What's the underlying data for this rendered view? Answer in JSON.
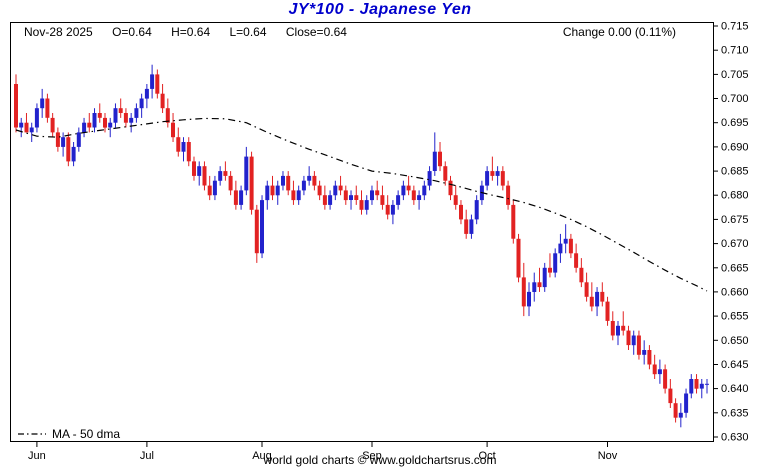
{
  "header": {
    "title": "JY*100  -  Japanese Yen",
    "date": "Nov-28 2025",
    "open": "O=0.64",
    "high": "H=0.64",
    "low": "L=0.64",
    "close": "Close=0.64",
    "change": "Change 0.00 (0.11%)"
  },
  "footer": {
    "credit": "world gold charts © www.goldchartsrus.com"
  },
  "chart_data": {
    "type": "candlestick",
    "title": "JY*100 - Japanese Yen",
    "xlabel": "",
    "ylabel": "",
    "ylim": [
      0.63,
      0.715
    ],
    "grid": false,
    "legend_position": "bottom-left",
    "y_ticks": [
      0.715,
      0.71,
      0.705,
      0.7,
      0.695,
      0.69,
      0.685,
      0.68,
      0.675,
      0.67,
      0.665,
      0.66,
      0.655,
      0.65,
      0.645,
      0.64,
      0.635,
      0.63
    ],
    "x_ticks": [
      {
        "label": "Jun",
        "index": 4
      },
      {
        "label": "Jul",
        "index": 25
      },
      {
        "label": "Aug",
        "index": 47
      },
      {
        "label": "Sep",
        "index": 68
      },
      {
        "label": "Oct",
        "index": 90
      },
      {
        "label": "Nov",
        "index": 113
      }
    ],
    "colors": {
      "up": "#2222cc",
      "down": "#e22222",
      "ma": "#000000",
      "title": "#0000cc"
    },
    "candles": [
      [
        0.703,
        0.705,
        0.693,
        0.694
      ],
      [
        0.694,
        0.696,
        0.692,
        0.695
      ],
      [
        0.695,
        0.697,
        0.693,
        0.693
      ],
      [
        0.693,
        0.695,
        0.691,
        0.694
      ],
      [
        0.694,
        0.699,
        0.693,
        0.698
      ],
      [
        0.698,
        0.702,
        0.696,
        0.7
      ],
      [
        0.7,
        0.701,
        0.695,
        0.696
      ],
      [
        0.696,
        0.697,
        0.692,
        0.693
      ],
      [
        0.693,
        0.694,
        0.689,
        0.69
      ],
      [
        0.69,
        0.693,
        0.688,
        0.692
      ],
      [
        0.692,
        0.693,
        0.686,
        0.687
      ],
      [
        0.687,
        0.691,
        0.686,
        0.69
      ],
      [
        0.69,
        0.694,
        0.689,
        0.693
      ],
      [
        0.693,
        0.696,
        0.692,
        0.695
      ],
      [
        0.695,
        0.697,
        0.693,
        0.694
      ],
      [
        0.694,
        0.698,
        0.693,
        0.697
      ],
      [
        0.697,
        0.699,
        0.695,
        0.696
      ],
      [
        0.696,
        0.697,
        0.693,
        0.694
      ],
      [
        0.694,
        0.696,
        0.692,
        0.695
      ],
      [
        0.695,
        0.699,
        0.694,
        0.698
      ],
      [
        0.698,
        0.7,
        0.696,
        0.697
      ],
      [
        0.697,
        0.698,
        0.694,
        0.695
      ],
      [
        0.695,
        0.697,
        0.693,
        0.696
      ],
      [
        0.696,
        0.699,
        0.695,
        0.698
      ],
      [
        0.698,
        0.701,
        0.696,
        0.7
      ],
      [
        0.7,
        0.703,
        0.698,
        0.702
      ],
      [
        0.702,
        0.707,
        0.7,
        0.705
      ],
      [
        0.705,
        0.706,
        0.7,
        0.701
      ],
      [
        0.701,
        0.703,
        0.697,
        0.698
      ],
      [
        0.698,
        0.7,
        0.694,
        0.695
      ],
      [
        0.695,
        0.697,
        0.691,
        0.692
      ],
      [
        0.692,
        0.694,
        0.688,
        0.689
      ],
      [
        0.689,
        0.692,
        0.687,
        0.691
      ],
      [
        0.691,
        0.692,
        0.686,
        0.687
      ],
      [
        0.687,
        0.688,
        0.683,
        0.684
      ],
      [
        0.684,
        0.687,
        0.682,
        0.686
      ],
      [
        0.686,
        0.687,
        0.681,
        0.682
      ],
      [
        0.682,
        0.684,
        0.679,
        0.68
      ],
      [
        0.68,
        0.684,
        0.679,
        0.683
      ],
      [
        0.683,
        0.686,
        0.682,
        0.685
      ],
      [
        0.685,
        0.687,
        0.683,
        0.684
      ],
      [
        0.684,
        0.685,
        0.68,
        0.681
      ],
      [
        0.681,
        0.683,
        0.677,
        0.678
      ],
      [
        0.678,
        0.682,
        0.677,
        0.681
      ],
      [
        0.681,
        0.69,
        0.68,
        0.688
      ],
      [
        0.688,
        0.689,
        0.676,
        0.677
      ],
      [
        0.677,
        0.678,
        0.666,
        0.668
      ],
      [
        0.668,
        0.68,
        0.667,
        0.679
      ],
      [
        0.679,
        0.683,
        0.677,
        0.682
      ],
      [
        0.682,
        0.684,
        0.679,
        0.68
      ],
      [
        0.68,
        0.683,
        0.678,
        0.682
      ],
      [
        0.682,
        0.685,
        0.681,
        0.684
      ],
      [
        0.684,
        0.685,
        0.68,
        0.681
      ],
      [
        0.681,
        0.683,
        0.678,
        0.679
      ],
      [
        0.679,
        0.682,
        0.678,
        0.681
      ],
      [
        0.681,
        0.684,
        0.68,
        0.683
      ],
      [
        0.683,
        0.686,
        0.682,
        0.684
      ],
      [
        0.684,
        0.685,
        0.681,
        0.682
      ],
      [
        0.682,
        0.683,
        0.679,
        0.68
      ],
      [
        0.68,
        0.682,
        0.677,
        0.678
      ],
      [
        0.678,
        0.681,
        0.677,
        0.68
      ],
      [
        0.68,
        0.683,
        0.679,
        0.682
      ],
      [
        0.682,
        0.684,
        0.68,
        0.681
      ],
      [
        0.681,
        0.682,
        0.678,
        0.679
      ],
      [
        0.679,
        0.681,
        0.677,
        0.68
      ],
      [
        0.68,
        0.682,
        0.678,
        0.679
      ],
      [
        0.679,
        0.681,
        0.676,
        0.677
      ],
      [
        0.677,
        0.68,
        0.676,
        0.679
      ],
      [
        0.679,
        0.682,
        0.678,
        0.681
      ],
      [
        0.681,
        0.683,
        0.679,
        0.68
      ],
      [
        0.68,
        0.682,
        0.677,
        0.678
      ],
      [
        0.678,
        0.68,
        0.675,
        0.676
      ],
      [
        0.676,
        0.679,
        0.674,
        0.678
      ],
      [
        0.678,
        0.681,
        0.677,
        0.68
      ],
      [
        0.68,
        0.683,
        0.679,
        0.682
      ],
      [
        0.682,
        0.684,
        0.68,
        0.681
      ],
      [
        0.681,
        0.682,
        0.678,
        0.679
      ],
      [
        0.679,
        0.681,
        0.677,
        0.68
      ],
      [
        0.68,
        0.683,
        0.679,
        0.682
      ],
      [
        0.682,
        0.686,
        0.681,
        0.685
      ],
      [
        0.685,
        0.693,
        0.684,
        0.689
      ],
      [
        0.689,
        0.691,
        0.685,
        0.686
      ],
      [
        0.686,
        0.687,
        0.682,
        0.683
      ],
      [
        0.683,
        0.684,
        0.679,
        0.68
      ],
      [
        0.68,
        0.682,
        0.677,
        0.678
      ],
      [
        0.678,
        0.679,
        0.674,
        0.675
      ],
      [
        0.675,
        0.677,
        0.671,
        0.672
      ],
      [
        0.672,
        0.676,
        0.671,
        0.675
      ],
      [
        0.675,
        0.68,
        0.674,
        0.679
      ],
      [
        0.679,
        0.683,
        0.678,
        0.682
      ],
      [
        0.682,
        0.686,
        0.681,
        0.685
      ],
      [
        0.685,
        0.688,
        0.683,
        0.684
      ],
      [
        0.684,
        0.686,
        0.682,
        0.685
      ],
      [
        0.685,
        0.686,
        0.681,
        0.682
      ],
      [
        0.682,
        0.683,
        0.677,
        0.678
      ],
      [
        0.678,
        0.679,
        0.67,
        0.671
      ],
      [
        0.671,
        0.672,
        0.662,
        0.663
      ],
      [
        0.663,
        0.666,
        0.655,
        0.657
      ],
      [
        0.657,
        0.662,
        0.655,
        0.66
      ],
      [
        0.66,
        0.664,
        0.658,
        0.662
      ],
      [
        0.662,
        0.665,
        0.66,
        0.661
      ],
      [
        0.661,
        0.666,
        0.66,
        0.665
      ],
      [
        0.665,
        0.668,
        0.663,
        0.664
      ],
      [
        0.664,
        0.669,
        0.663,
        0.668
      ],
      [
        0.668,
        0.672,
        0.666,
        0.67
      ],
      [
        0.67,
        0.674,
        0.668,
        0.671
      ],
      [
        0.671,
        0.672,
        0.667,
        0.668
      ],
      [
        0.668,
        0.67,
        0.664,
        0.665
      ],
      [
        0.665,
        0.667,
        0.661,
        0.662
      ],
      [
        0.662,
        0.664,
        0.658,
        0.659
      ],
      [
        0.659,
        0.662,
        0.656,
        0.657
      ],
      [
        0.657,
        0.661,
        0.655,
        0.66
      ],
      [
        0.66,
        0.662,
        0.657,
        0.658
      ],
      [
        0.658,
        0.659,
        0.653,
        0.654
      ],
      [
        0.654,
        0.656,
        0.65,
        0.651
      ],
      [
        0.651,
        0.654,
        0.649,
        0.653
      ],
      [
        0.653,
        0.656,
        0.651,
        0.652
      ],
      [
        0.652,
        0.653,
        0.648,
        0.649
      ],
      [
        0.649,
        0.652,
        0.647,
        0.651
      ],
      [
        0.651,
        0.652,
        0.646,
        0.647
      ],
      [
        0.647,
        0.65,
        0.645,
        0.648
      ],
      [
        0.648,
        0.649,
        0.644,
        0.645
      ],
      [
        0.645,
        0.647,
        0.642,
        0.643
      ],
      [
        0.643,
        0.646,
        0.641,
        0.644
      ],
      [
        0.644,
        0.645,
        0.639,
        0.64
      ],
      [
        0.64,
        0.642,
        0.636,
        0.637
      ],
      [
        0.637,
        0.638,
        0.633,
        0.634
      ],
      [
        0.634,
        0.637,
        0.632,
        0.635
      ],
      [
        0.635,
        0.64,
        0.634,
        0.639
      ],
      [
        0.639,
        0.643,
        0.638,
        0.642
      ],
      [
        0.642,
        0.643,
        0.639,
        0.64
      ],
      [
        0.64,
        0.642,
        0.638,
        0.641
      ],
      [
        0.641,
        0.642,
        0.639,
        0.641
      ]
    ],
    "ma50": {
      "label": "MA - 50 dma",
      "points": [
        [
          0,
          0.6935
        ],
        [
          4,
          0.6922
        ],
        [
          8,
          0.692
        ],
        [
          12,
          0.6928
        ],
        [
          16,
          0.6934
        ],
        [
          20,
          0.694
        ],
        [
          24,
          0.6946
        ],
        [
          28,
          0.6952
        ],
        [
          32,
          0.6956
        ],
        [
          36,
          0.6959
        ],
        [
          40,
          0.6958
        ],
        [
          44,
          0.695
        ],
        [
          48,
          0.693
        ],
        [
          52,
          0.6912
        ],
        [
          56,
          0.6895
        ],
        [
          60,
          0.688
        ],
        [
          64,
          0.6864
        ],
        [
          68,
          0.685
        ],
        [
          72,
          0.6845
        ],
        [
          76,
          0.6838
        ],
        [
          80,
          0.683
        ],
        [
          84,
          0.682
        ],
        [
          88,
          0.6808
        ],
        [
          91,
          0.68
        ],
        [
          94,
          0.6793
        ],
        [
          97,
          0.6785
        ],
        [
          100,
          0.6775
        ],
        [
          103,
          0.6763
        ],
        [
          106,
          0.675
        ],
        [
          109,
          0.6735
        ],
        [
          112,
          0.6718
        ],
        [
          115,
          0.67
        ],
        [
          118,
          0.6682
        ],
        [
          121,
          0.6663
        ],
        [
          124,
          0.6645
        ],
        [
          127,
          0.6628
        ],
        [
          130,
          0.6613
        ],
        [
          132,
          0.6602
        ]
      ]
    }
  }
}
